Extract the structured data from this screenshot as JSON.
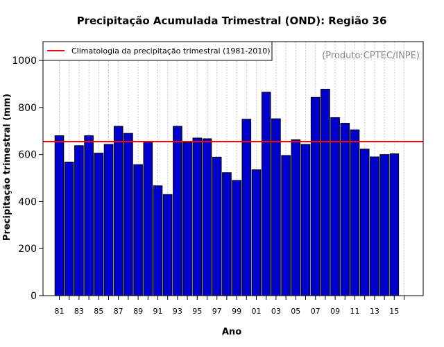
{
  "chart_data": {
    "type": "bar",
    "title": "Precipitação Acumulada Trimestral (OND): Região 36",
    "xlabel": "Ano",
    "ylabel": "Precipitação trimestral (mm)",
    "ylim": [
      0,
      1080
    ],
    "yticks": [
      0,
      200,
      400,
      600,
      800,
      1000
    ],
    "years": [
      1981,
      1982,
      1983,
      1984,
      1985,
      1986,
      1987,
      1988,
      1989,
      1990,
      1991,
      1992,
      1993,
      1994,
      1995,
      1996,
      1997,
      1998,
      1999,
      2000,
      2001,
      2002,
      2003,
      2004,
      2005,
      2006,
      2007,
      2008,
      2009,
      2010,
      2011,
      2012,
      2013,
      2014,
      2015
    ],
    "values": [
      680,
      568,
      638,
      680,
      606,
      643,
      720,
      690,
      557,
      655,
      467,
      430,
      720,
      652,
      670,
      667,
      589,
      523,
      490,
      750,
      535,
      865,
      752,
      596,
      663,
      643,
      843,
      878,
      757,
      733,
      705,
      623,
      590,
      600,
      603
    ],
    "xtick_labels": [
      "81",
      "83",
      "85",
      "87",
      "89",
      "91",
      "93",
      "95",
      "97",
      "99",
      "01",
      "03",
      "05",
      "07",
      "09",
      "11",
      "13",
      "15"
    ],
    "xtick_years": [
      1981,
      1983,
      1985,
      1987,
      1989,
      1991,
      1993,
      1995,
      1997,
      1999,
      2001,
      2003,
      2005,
      2007,
      2009,
      2011,
      2013,
      2015
    ],
    "climatology": 655,
    "legend": "Climatologia da precipitação trimestral (1981-2010)",
    "legend_position": "top-left",
    "source": "(Produto:CPTEC/INPE)",
    "grid": "vertical-dotted"
  },
  "colors": {
    "bar_fill": "#0000cc",
    "bar_edge": "#000000",
    "climatology_line": "#ff0000",
    "grid": "#c8c8c8",
    "source_text": "#888888"
  }
}
